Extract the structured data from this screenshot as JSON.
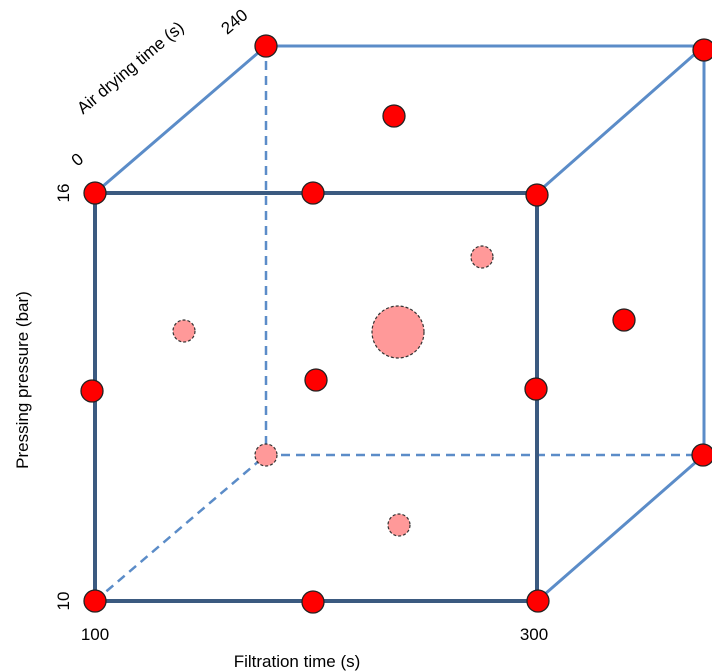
{
  "axes": {
    "x": {
      "label": "Filtration time (s)",
      "min": "100",
      "max": "300"
    },
    "y": {
      "label": "Pressing pressure (bar)",
      "min": "10",
      "max": "16"
    },
    "z": {
      "label": "Air drying time (s)",
      "min": "0",
      "max": "240"
    }
  },
  "colors": {
    "front_edges": "#3b5a80",
    "back_edges": "#5b8cc8",
    "factorial_point": "#ff0000",
    "center_point": "#ff9999"
  }
}
